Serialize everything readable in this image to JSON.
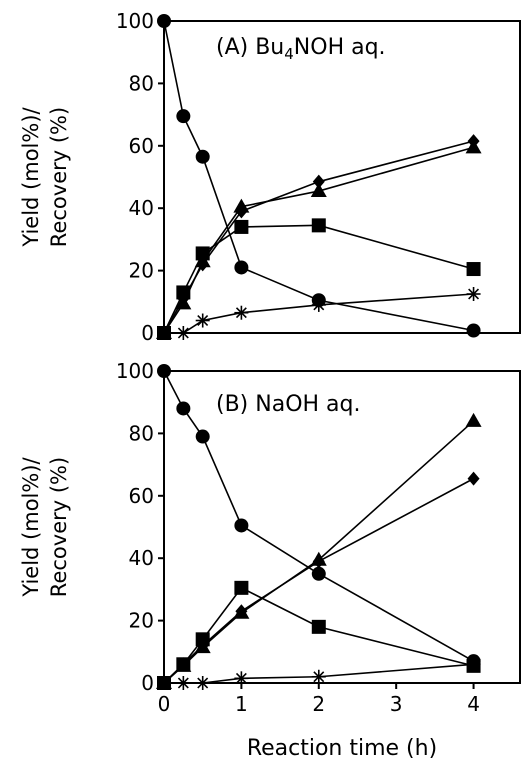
{
  "chart_data": [
    {
      "type": "line",
      "annotation": "(A) Bu4NOH aq.",
      "annotation_parts": {
        "prefix": "(A) Bu",
        "subscript": "4",
        "suffix": "NOH aq."
      },
      "ylabel_line1": "Yield (mol%)/",
      "ylabel_line2": "Recovery (%)",
      "xlim": [
        0,
        4.6
      ],
      "ylim": [
        0,
        100
      ],
      "yticks": [
        "0",
        "20",
        "40",
        "60",
        "80",
        "100"
      ],
      "series": [
        {
          "marker": "circle",
          "points": [
            [
              0,
              100
            ],
            [
              0.25,
              69.5
            ],
            [
              0.5,
              56.5
            ],
            [
              1,
              21
            ],
            [
              2,
              10.5
            ],
            [
              4,
              0.8
            ]
          ]
        },
        {
          "marker": "triangle",
          "points": [
            [
              0,
              0
            ],
            [
              0.25,
              9.5
            ],
            [
              0.5,
              23
            ],
            [
              1,
              40.5
            ],
            [
              2,
              45.5
            ],
            [
              4,
              59.5
            ]
          ]
        },
        {
          "marker": "diamond",
          "points": [
            [
              0,
              0
            ],
            [
              0.25,
              11
            ],
            [
              0.5,
              22
            ],
            [
              1,
              39
            ],
            [
              2,
              48.5
            ],
            [
              4,
              61.5
            ]
          ]
        },
        {
          "marker": "square",
          "points": [
            [
              0,
              0
            ],
            [
              0.25,
              13
            ],
            [
              0.5,
              25.5
            ],
            [
              1,
              34
            ],
            [
              2,
              34.5
            ],
            [
              4,
              20.5
            ]
          ]
        },
        {
          "marker": "asterisk",
          "points": [
            [
              0,
              0
            ],
            [
              0.25,
              0
            ],
            [
              0.5,
              4
            ],
            [
              1,
              6.5
            ],
            [
              2,
              9
            ],
            [
              4,
              12.5
            ]
          ]
        }
      ]
    },
    {
      "type": "line",
      "annotation": "(B) NaOH aq.",
      "ylabel_line1": "Yield (mol%)/",
      "ylabel_line2": "Recovery (%)",
      "xlabel": "Reaction time (h)",
      "xlim": [
        0,
        4.6
      ],
      "ylim": [
        0,
        100
      ],
      "yticks": [
        "0",
        "20",
        "40",
        "60",
        "80",
        "100"
      ],
      "xticks": [
        "0",
        "1",
        "2",
        "3",
        "4"
      ],
      "series": [
        {
          "marker": "circle",
          "points": [
            [
              0,
              100
            ],
            [
              0.25,
              88
            ],
            [
              0.5,
              79
            ],
            [
              1,
              50.5
            ],
            [
              2,
              35
            ],
            [
              4,
              7
            ]
          ]
        },
        {
          "marker": "triangle",
          "points": [
            [
              0,
              0
            ],
            [
              0.25,
              5.5
            ],
            [
              0.5,
              11.5
            ],
            [
              1,
              22.5
            ],
            [
              2,
              39.5
            ],
            [
              4,
              84
            ]
          ]
        },
        {
          "marker": "diamond",
          "points": [
            [
              0,
              0
            ],
            [
              0.25,
              6
            ],
            [
              0.5,
              12
            ],
            [
              1,
              23
            ],
            [
              2,
              39
            ],
            [
              4,
              65.5
            ]
          ]
        },
        {
          "marker": "square",
          "points": [
            [
              0,
              0
            ],
            [
              0.25,
              6
            ],
            [
              0.5,
              14
            ],
            [
              1,
              30.5
            ],
            [
              2,
              18
            ],
            [
              4,
              5.5
            ]
          ]
        },
        {
          "marker": "asterisk",
          "points": [
            [
              0,
              0
            ],
            [
              0.25,
              0
            ],
            [
              0.5,
              0
            ],
            [
              1,
              1.5
            ],
            [
              2,
              2
            ],
            [
              4,
              6
            ]
          ]
        }
      ]
    }
  ]
}
